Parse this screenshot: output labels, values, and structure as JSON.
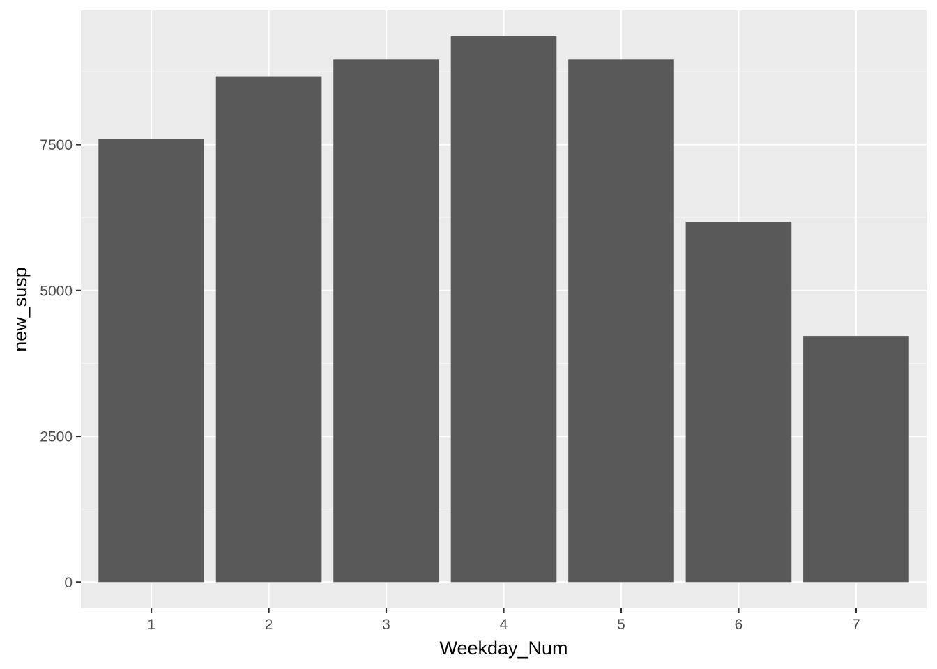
{
  "chart_data": {
    "type": "bar",
    "title": "",
    "xlabel": "Weekday_Num",
    "ylabel": "new_susp",
    "categories": [
      "1",
      "2",
      "3",
      "4",
      "5",
      "6",
      "7"
    ],
    "values": [
      7590,
      8670,
      8960,
      9360,
      8960,
      6180,
      4220
    ],
    "ylim": [
      -450,
      9800
    ],
    "yticks": [
      0,
      2500,
      5000,
      7500
    ],
    "yticks_labels": [
      "0",
      "2500",
      "5000",
      "7500"
    ],
    "grid": true,
    "legend": "none",
    "colors": {
      "bar": "#595959",
      "panel_background": "#ebebeb",
      "grid_major": "#ffffff",
      "grid_minor": "#f5f5f5",
      "tick_text": "#4d4d4d",
      "tick_mark": "#333333",
      "axis_title": "#000000"
    }
  }
}
